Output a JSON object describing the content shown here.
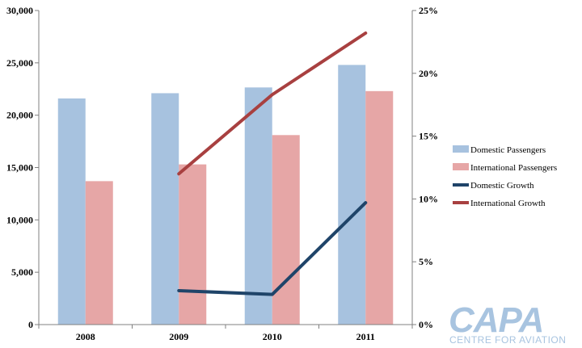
{
  "chart_data": {
    "type": "bar",
    "categories": [
      "2008",
      "2009",
      "2010",
      "2011"
    ],
    "series": [
      {
        "name": "Domestic Passengers",
        "kind": "bar",
        "axis": "left",
        "color": "#a7c2df",
        "values": [
          21600,
          22100,
          22650,
          24800
        ]
      },
      {
        "name": "International Passengers",
        "kind": "bar",
        "axis": "left",
        "color": "#e6a6a6",
        "values": [
          13700,
          15300,
          18100,
          22300
        ]
      },
      {
        "name": "Domestic Growth",
        "kind": "line",
        "axis": "right",
        "color": "#1f4469",
        "values": [
          null,
          2.7,
          2.4,
          9.7
        ]
      },
      {
        "name": "International Growth",
        "kind": "line",
        "axis": "right",
        "color": "#a84040",
        "values": [
          null,
          12.0,
          18.3,
          23.2
        ]
      }
    ],
    "y_left": {
      "min": 0,
      "max": 30000,
      "ticks": [
        "0",
        "5,000",
        "10,000",
        "15,000",
        "20,000",
        "25,000",
        "30,000"
      ]
    },
    "y_right": {
      "min": 0,
      "max": 25,
      "ticks": [
        "0%",
        "5%",
        "10%",
        "15%",
        "20%",
        "25%"
      ]
    },
    "grid": false,
    "legend_position": "right"
  },
  "watermark": {
    "main": "CAPA",
    "sub": "CENTRE FOR AVIATION"
  }
}
